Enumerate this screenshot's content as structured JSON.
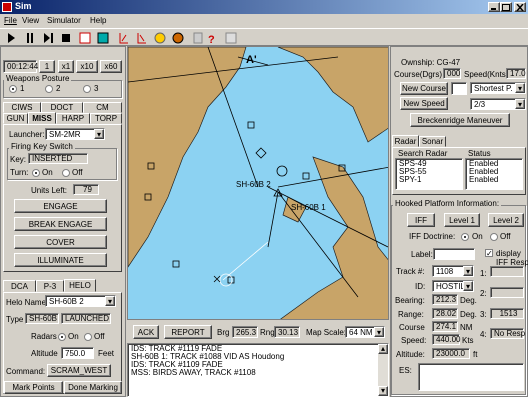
{
  "window": {
    "title": "Sim",
    "menu": [
      "File",
      "View",
      "Simulator",
      "Help"
    ]
  },
  "left": {
    "clock": "00:12:44",
    "rate": "1",
    "speeds": [
      "x1",
      "x10",
      "x60"
    ],
    "weapons_posture": {
      "title": "Weapons Posture",
      "options": [
        "1",
        "2",
        "3"
      ]
    },
    "tabs_row1": [
      "CIWS",
      "DOCT",
      "CM"
    ],
    "tabs_row2": [
      "GUN",
      "MISS",
      "HARP",
      "TORP"
    ],
    "launcher_label": "Launcher:",
    "launcher": "SM-2MR",
    "firing_key": {
      "title": "Firing Key Switch",
      "key_label": "Key:",
      "key": "INSERTED",
      "turn_label": "Turn:",
      "on": "On",
      "off": "Off"
    },
    "units_left_label": "Units Left:",
    "units_left": "79",
    "buttons": [
      "ENGAGE",
      "BREAK ENGAGE",
      "COVER",
      "ILLUMINATE"
    ],
    "helo_tabs": [
      "DCA",
      "P-3",
      "HELO"
    ],
    "helo_name_label": "Helo Name",
    "helo_name": "SH-60B 2",
    "type_label": "Type",
    "type": "SH-60B",
    "status": "LAUNCHED",
    "radars_label": "Radars",
    "on": "On",
    "off": "Off",
    "altitude_label": "Altitude",
    "altitude": "750.0",
    "altitude_unit": "Feet",
    "command_label": "Command:",
    "command": "SCRAM_WEST",
    "mark_buttons": [
      "Mark Points",
      "Done Marking"
    ]
  },
  "map": {
    "labels": [
      "A'",
      "SH-60B 2",
      "SH-60B 1"
    ]
  },
  "bottom": {
    "ack": "ACK",
    "report": "REPORT",
    "brg_label": "Brg",
    "brg": "265.3",
    "rng_label": "Rng",
    "rng": "30.13",
    "scale_label": "Map Scale:",
    "scale": "64 NM"
  },
  "log": [
    "IDS: TRACK #1119 FADE",
    "SH-60B 1: TRACK #1088 VID AS Houdong",
    "IDS: TRACK #1109 FADE",
    "MSS: BIRDS AWAY, TRACK #1108"
  ],
  "right": {
    "ownship": "Ownship: CG-47",
    "course_label": "Course(Dgrs)",
    "course": "000",
    "speed_label": "Speed(Knts)",
    "speed": "17.0",
    "new_course": "New Course",
    "path": "Shortest P.",
    "new_speed": "New Speed",
    "speed_setting": "2/3",
    "maneuver": "Breckenridge Maneuver",
    "tabs": [
      "Radar",
      "Sonar"
    ],
    "table": {
      "headers": [
        "Search Radar",
        "Status"
      ],
      "rows": [
        [
          "SPS-49",
          "Enabled"
        ],
        [
          "SPS-55",
          "Enabled"
        ],
        [
          "SPY-1",
          "Enabled"
        ]
      ]
    },
    "hooked": {
      "title": "Hooked Platform Information:",
      "iff_buttons": [
        "IFF",
        "Level 1",
        "Level 2"
      ],
      "doctrine_label": "IFF Doctrine:",
      "on": "On",
      "off": "Off",
      "label_label": "Label:",
      "display": "display",
      "track_label": "Track #:",
      "track": "1108",
      "iff_resp": "IFF Resp",
      "id_label": "ID:",
      "id": "HOSTILE",
      "resp_labels": [
        "1:",
        "2:",
        "3:",
        "4:"
      ],
      "resp_3": "1513",
      "resp_4": "No Resp",
      "bearing_label": "Bearing:",
      "bearing": "212.3",
      "bearing_unit": "Deg.",
      "range_label": "Range:",
      "range": "28.02",
      "range_unit": "Deg.",
      "course_label": "Course",
      "course": "274.1",
      "course_unit": "NM",
      "speed_label": "Speed:",
      "speed": "440.00",
      "speed_unit": "Kts",
      "altitude_label": "Altitude:",
      "altitude": "23000.0",
      "altitude_unit": "ft",
      "es_label": "ES:"
    }
  }
}
